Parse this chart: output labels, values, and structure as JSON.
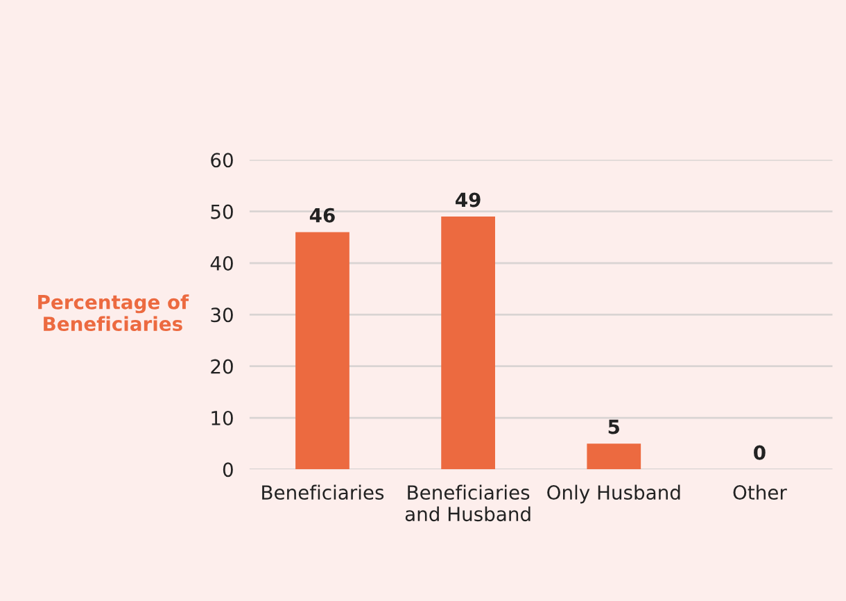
{
  "chart_data": {
    "type": "bar",
    "ylabel": "Percentage of\nBeneficiaries",
    "categories": [
      "Beneficiaries",
      "Beneficiaries\nand Husband",
      "Only Husband",
      "Other"
    ],
    "values": [
      46,
      49,
      5,
      0
    ],
    "color": "#ec6a40",
    "data_labels": true,
    "ylim": [
      0,
      60
    ],
    "yticks": [
      0,
      10,
      20,
      30,
      40,
      50,
      60
    ],
    "grid": "y",
    "legend": false
  }
}
